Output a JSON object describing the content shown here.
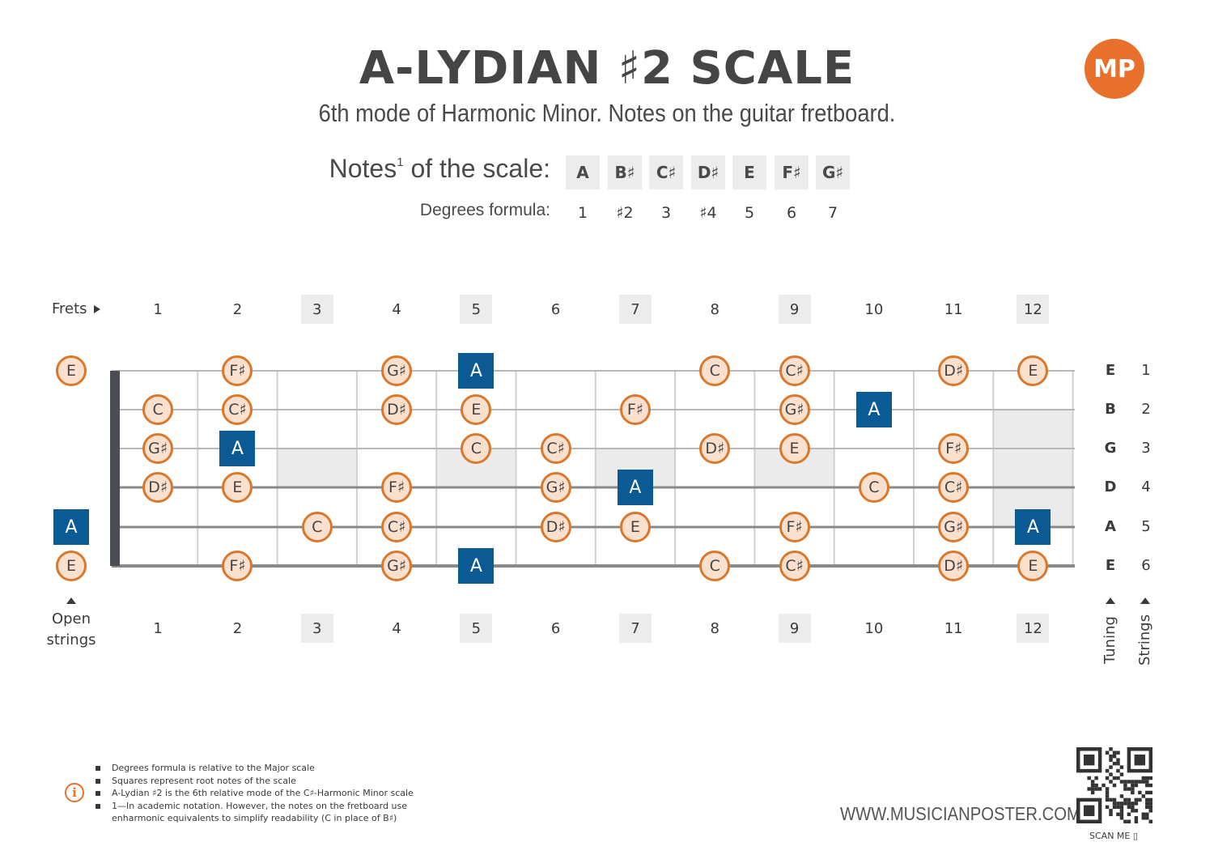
{
  "header": {
    "title": "A-LYDIAN ♯2 SCALE",
    "subtitle": "6th mode of Harmonic Minor. Notes on the guitar fretboard.",
    "logo": "MP"
  },
  "scale": {
    "notes_label": "Notes",
    "notes_sup": "1",
    "notes_label_tail": " of the scale:",
    "formula_label": "Degrees formula:",
    "notes": [
      "A",
      "B♯",
      "C♯",
      "D♯",
      "E",
      "F♯",
      "G♯"
    ],
    "degrees": [
      "1",
      "♯2",
      "3",
      "♯4",
      "5",
      "6",
      "7"
    ]
  },
  "fretboard": {
    "frets_label": "Frets",
    "open_label_line1": "Open",
    "open_label_line2": "strings",
    "fret_numbers": [
      "1",
      "2",
      "3",
      "4",
      "5",
      "6",
      "7",
      "8",
      "9",
      "10",
      "11",
      "12"
    ],
    "shaded_frets": [
      "3",
      "5",
      "7",
      "9",
      "12"
    ],
    "tuning": [
      "E",
      "B",
      "G",
      "D",
      "A",
      "E"
    ],
    "string_numbers": [
      "1",
      "2",
      "3",
      "4",
      "5",
      "6"
    ],
    "tuning_label": "Tuning",
    "strings_label": "Strings",
    "strings": [
      [
        "E",
        "",
        "F♯",
        "",
        "G♯",
        "A",
        "",
        "",
        "C",
        "C♯",
        "",
        "D♯",
        "E"
      ],
      [
        "",
        "C",
        "C♯",
        "",
        "D♯",
        "E",
        "",
        "F♯",
        "",
        "G♯",
        "A",
        "",
        ""
      ],
      [
        "",
        "G♯",
        "A",
        "",
        "",
        "C",
        "C♯",
        "",
        "D♯",
        "E",
        "",
        "F♯",
        ""
      ],
      [
        "",
        "D♯",
        "E",
        "",
        "F♯",
        "",
        "G♯",
        "A",
        "",
        "",
        "C",
        "C♯",
        ""
      ],
      [
        "A",
        "",
        "",
        "C",
        "C♯",
        "",
        "D♯",
        "E",
        "",
        "F♯",
        "",
        "G♯",
        "A"
      ],
      [
        "E",
        "",
        "F♯",
        "",
        "G♯",
        "A",
        "",
        "",
        "C",
        "C♯",
        "",
        "D♯",
        "E"
      ]
    ],
    "root_note": "A",
    "colors": {
      "root": "#0b5a93",
      "note_fill": "#fbe0cd",
      "note_border": "#d9772b",
      "accent": "#e8702a"
    }
  },
  "footer": {
    "notes": [
      "Degrees formula is relative to the Major scale",
      "Squares represent root notes of the scale",
      "A-Lydian ♯2 is the 6th relative mode of the C♯-Harmonic Minor scale",
      "1—In academic notation. However, the notes on the fretboard use enharmonic equivalents to simplify readability (C in place of B♯)"
    ],
    "website": "WWW.MUSICIANPOSTER.COM",
    "scan_label": "SCAN ME"
  }
}
